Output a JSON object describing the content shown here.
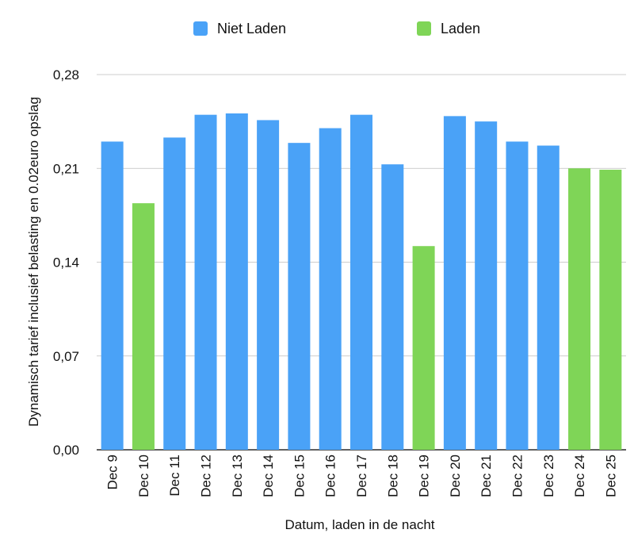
{
  "chart_data": {
    "type": "bar",
    "categories": [
      "Dec 9",
      "Dec 10",
      "Dec 11",
      "Dec 12",
      "Dec 13",
      "Dec 14",
      "Dec 15",
      "Dec 16",
      "Dec 17",
      "Dec 18",
      "Dec 19",
      "Dec 20",
      "Dec 21",
      "Dec 22",
      "Dec 23",
      "Dec 24",
      "Dec 25"
    ],
    "values": [
      0.23,
      0.184,
      0.233,
      0.25,
      0.251,
      0.246,
      0.229,
      0.24,
      0.25,
      0.213,
      0.152,
      0.249,
      0.245,
      0.23,
      0.227,
      0.21,
      0.209
    ],
    "charging": [
      false,
      true,
      false,
      false,
      false,
      false,
      false,
      false,
      false,
      false,
      true,
      false,
      false,
      false,
      false,
      true,
      true
    ],
    "series": [
      {
        "name": "Niet Laden",
        "color": "#4aa2f7"
      },
      {
        "name": "Laden",
        "color": "#7fd557"
      }
    ],
    "title": "",
    "xlabel": "Datum, laden in de nacht",
    "ylabel": "Dynamisch tarief inclusief belasting en 0.02euro opslag",
    "ylim": [
      0,
      0.28
    ],
    "yticks": [
      "0,00",
      "0,07",
      "0,14",
      "0,21",
      "0,28"
    ],
    "ytick_values": [
      0,
      0.07,
      0.14,
      0.21,
      0.28
    ],
    "grid": true,
    "legend_position": "top-center"
  }
}
